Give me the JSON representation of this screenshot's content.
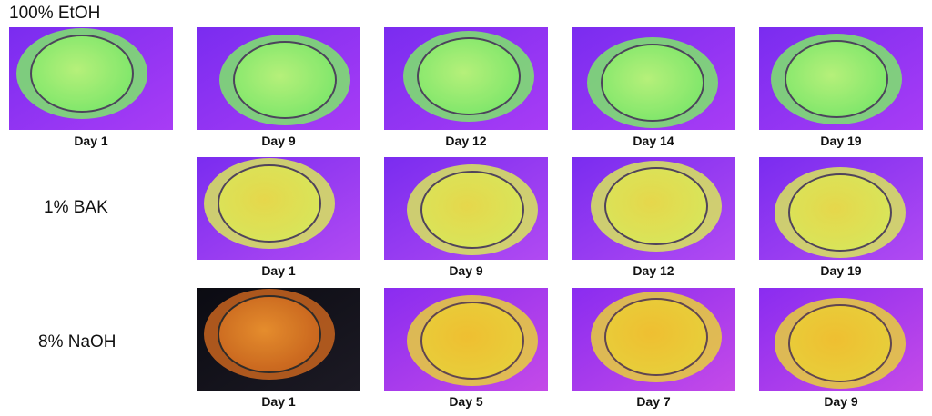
{
  "rows": [
    {
      "label": "100% EtOH",
      "panels": [
        {
          "caption": "Day 1"
        },
        {
          "caption": "Day 9"
        },
        {
          "caption": "Day 12"
        },
        {
          "caption": "Day 14"
        },
        {
          "caption": "Day 19"
        }
      ]
    },
    {
      "label": "1% BAK",
      "panels": [
        {
          "caption": "Day 1"
        },
        {
          "caption": "Day 9"
        },
        {
          "caption": "Day 12"
        },
        {
          "caption": "Day 19"
        }
      ]
    },
    {
      "label": "8% NaOH",
      "panels": [
        {
          "caption": "Day 1"
        },
        {
          "caption": "Day 5"
        },
        {
          "caption": "Day 7"
        },
        {
          "caption": "Day 9"
        }
      ]
    }
  ]
}
